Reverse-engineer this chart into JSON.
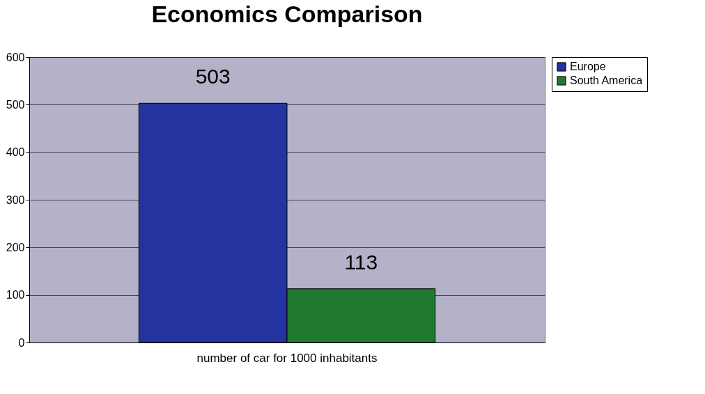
{
  "chart_data": {
    "type": "bar",
    "title": "Economics Comparison",
    "categories": [
      "number of car for 1000 inhabitants"
    ],
    "series": [
      {
        "name": "Europe",
        "color": "#2433a0",
        "values": [
          503
        ]
      },
      {
        "name": "South America",
        "color": "#1f7a30",
        "values": [
          113
        ]
      }
    ],
    "ylim": [
      0,
      600
    ],
    "yticks": [
      0,
      100,
      200,
      300,
      400,
      500,
      600
    ],
    "grid": "y",
    "legend": "right",
    "data_labels": true
  }
}
